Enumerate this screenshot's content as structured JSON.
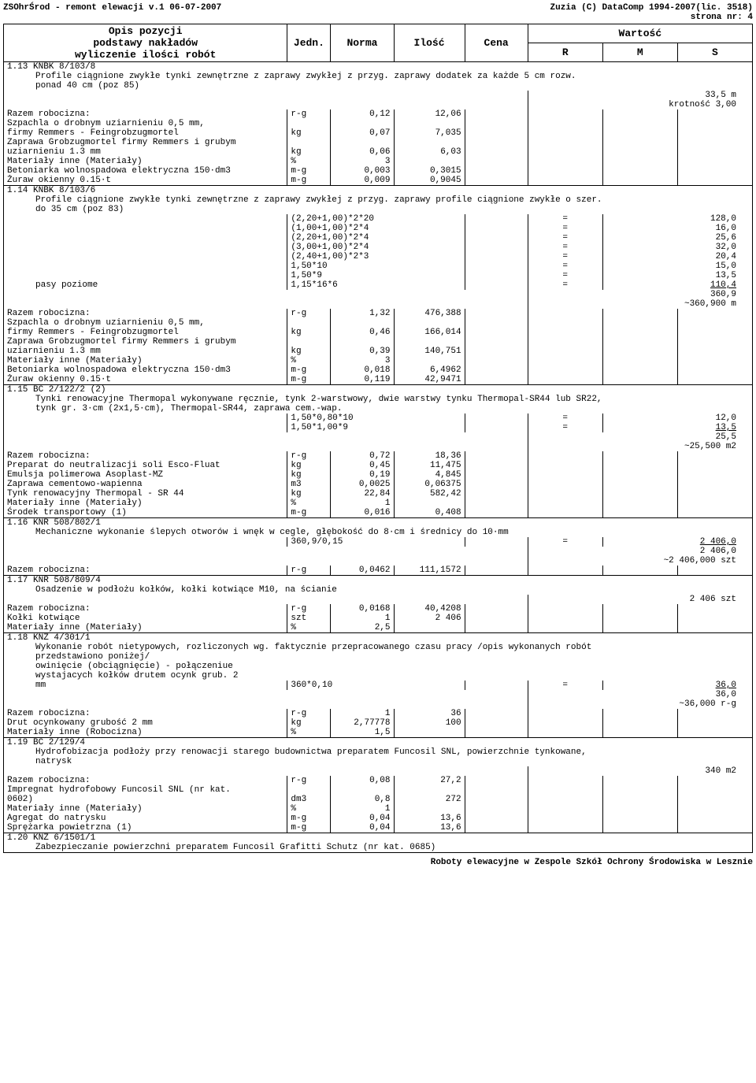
{
  "header_left": "ZSOhrŚrod - remont elewacji v.1 06-07-2007",
  "header_right1": "Zuzia (C) DataComp 1994-2007(lic. 3518)",
  "header_right2": "strona nr:   4",
  "col_headers": {
    "opis1": "Opis pozycji",
    "opis2": "podstawy nakładów",
    "opis3": "wyliczenie ilości robót",
    "jedn": "Jedn.",
    "norma": "Norma",
    "ilosc": "Ilość",
    "cena": "Cena",
    "wartosc": "Wartość",
    "r": "R",
    "m": "M",
    "s": "S"
  },
  "s113": {
    "code": "1.13 KNBK 8/103/8",
    "desc1": "Profile ciągnione zwykłe tynki zewnętrzne z zaprawy zwykłej z przyg. zaprawy dodatek za każde 5 cm rozw.",
    "desc2": "ponad 40 cm (poz 85)",
    "val": "33,5 m",
    "krot": "krotność 3,00",
    "rows": [
      {
        "label": "Razem robocizna:",
        "u": "r-g",
        "n": "0,12",
        "q": "12,06"
      },
      {
        "label": "Szpachla o drobnym uziarnieniu 0,5 mm,",
        "u": "",
        "n": "",
        "q": ""
      },
      {
        "label": "firmy Remmers - Feingrobzugmortel",
        "u": "kg",
        "n": "0,07",
        "q": "7,035"
      },
      {
        "label": "Zaprawa Grobzugmortel firmy Remmers i grubym",
        "u": "",
        "n": "",
        "q": ""
      },
      {
        "label": "uziarnieniu  1.3 mm",
        "u": "kg",
        "n": "0,06",
        "q": "6,03"
      },
      {
        "label": "Materiały inne (Materiały)",
        "u": "%",
        "n": "3",
        "q": ""
      },
      {
        "label": "Betoniarka wolnospadowa elektryczna 150·dm3",
        "u": "m-g",
        "n": "0,003",
        "q": "0,3015"
      },
      {
        "label": "Żuraw okienny 0.15·t",
        "u": "m-g",
        "n": "0,009",
        "q": "0,9045"
      }
    ]
  },
  "s114": {
    "code": "1.14 KNBK 8/103/6",
    "desc1": "Profile ciągnione zwykłe tynki zewnętrzne z zaprawy zwykłej z przyg. zaprawy profile ciągnione zwykłe o szer.",
    "desc2": "do 35 cm (poz 83)",
    "calcs": [
      {
        "label": "",
        "f": "(2,20+1,00)*2*20",
        "r": "128,0"
      },
      {
        "label": "",
        "f": "(1,00+1,00)*2*4",
        "r": "16,0"
      },
      {
        "label": "",
        "f": "(2,20+1,00)*2*4",
        "r": "25,6"
      },
      {
        "label": "",
        "f": "(3,00+1,00)*2*4",
        "r": "32,0"
      },
      {
        "label": "",
        "f": "(2,40+1,00)*2*3",
        "r": "20,4"
      },
      {
        "label": "",
        "f": "1,50*10",
        "r": "15,0"
      },
      {
        "label": "",
        "f": "1,50*9",
        "r": "13,5"
      },
      {
        "label": "pasy poziome",
        "f": "1,15*16*6",
        "r": "110,4",
        "under": true
      }
    ],
    "sum1": "360,9",
    "sum2": "~360,900 m",
    "rows": [
      {
        "label": "Razem robocizna:",
        "u": "r-g",
        "n": "1,32",
        "q": "476,388"
      },
      {
        "label": "Szpachla o drobnym uziarnieniu 0,5 mm,",
        "u": "",
        "n": "",
        "q": ""
      },
      {
        "label": "firmy Remmers - Feingrobzugmortel",
        "u": "kg",
        "n": "0,46",
        "q": "166,014"
      },
      {
        "label": "Zaprawa Grobzugmortel firmy Remmers i grubym",
        "u": "",
        "n": "",
        "q": ""
      },
      {
        "label": "uziarnieniu  1.3 mm",
        "u": "kg",
        "n": "0,39",
        "q": "140,751"
      },
      {
        "label": "Materiały inne (Materiały)",
        "u": "%",
        "n": "3",
        "q": ""
      },
      {
        "label": "Betoniarka wolnospadowa elektryczna 150·dm3",
        "u": "m-g",
        "n": "0,018",
        "q": "6,4962"
      },
      {
        "label": "Żuraw okienny 0.15·t",
        "u": "m-g",
        "n": "0,119",
        "q": "42,9471"
      }
    ]
  },
  "s115": {
    "code": "1.15 BC 2/122/2 (2)",
    "desc1": "Tynki renowacyjne Thermopal wykonywane ręcznie, tynk 2-warstwowy, dwie warstwy tynku Thermopal-SR44 lub SR22,",
    "desc2": "tynk gr. 3·cm (2x1,5·cm), Thermopal-SR44, zaprawa cem.-wap.",
    "calcs": [
      {
        "f": "1,50*0,80*10",
        "r": "12,0"
      },
      {
        "f": "1,50*1,00*9",
        "r": "13,5",
        "under": true
      }
    ],
    "sum1": "25,5",
    "sum2": "~25,500 m2",
    "rows": [
      {
        "label": "Razem robocizna:",
        "u": "r-g",
        "n": "0,72",
        "q": "18,36"
      },
      {
        "label": "Preparat do neutralizacji soli Esco-Fluat",
        "u": "kg",
        "n": "0,45",
        "q": "11,475"
      },
      {
        "label": "Emulsja polimerowa Asoplast-MZ",
        "u": "kg",
        "n": "0,19",
        "q": "4,845"
      },
      {
        "label": "Zaprawa cementowo-wapienna",
        "u": "m3",
        "n": "0,0025",
        "q": "0,06375"
      },
      {
        "label": "Tynk renowacyjny Thermopal - SR 44",
        "u": "kg",
        "n": "22,84",
        "q": "582,42"
      },
      {
        "label": "Materiały inne (Materiały)",
        "u": "%",
        "n": "1",
        "q": ""
      },
      {
        "label": "Środek transportowy (1)",
        "u": "m-g",
        "n": "0,016",
        "q": "0,408"
      }
    ]
  },
  "s116": {
    "code": "1.16 KNR 508/802/1",
    "desc": "Mechaniczne wykonanie ślepych otworów i wnęk w cegle, głębokość do 8·cm i średnicy do 10·mm",
    "calc_f": "360,9/0,15",
    "calc_r": "2 406,0",
    "sum1": "2 406,0",
    "sum2": "~2 406,000 szt",
    "rows": [
      {
        "label": "Razem robocizna:",
        "u": "r-g",
        "n": "0,0462",
        "q": "111,1572"
      }
    ]
  },
  "s117": {
    "code": "1.17 KNR 508/809/4",
    "desc": "Osadzenie w podłożu kołków, kołki kotwiące M10, na ścianie",
    "val": "2 406 szt",
    "rows": [
      {
        "label": "Razem robocizna:",
        "u": "r-g",
        "n": "0,0168",
        "q": "40,4208"
      },
      {
        "label": "Kołki kotwiące",
        "u": "szt",
        "n": "1",
        "q": "2 406"
      },
      {
        "label": "Materiały inne (Materiały)",
        "u": "%",
        "n": "2,5",
        "q": ""
      }
    ]
  },
  "s118": {
    "code": "1.18 KNZ 4/301/1",
    "desc1": "Wykonanie robót nietypowych, rozliczonych wg. faktycznie przepracowanego czasu pracy /opis wykonanych robót",
    "desc2": "przedstawiono poniżej/",
    "desc3": "owinięcie (obciągnięcie) - połączeniue",
    "desc4": "wystajacych kołków  drutem ocynk grub. 2",
    "calc_label": "mm",
    "calc_f": "360*0,10",
    "calc_r": "36,0",
    "sum1": "36,0",
    "sum2": "~36,000 r-g",
    "rows": [
      {
        "label": "Razem robocizna:",
        "u": "r-g",
        "n": "1",
        "q": "36"
      },
      {
        "label": "Drut ocynkowany grubość 2 mm",
        "u": "kg",
        "n": "2,77778",
        "q": "100"
      },
      {
        "label": "Materiały inne (Robocizna)",
        "u": "%",
        "n": "1,5",
        "q": ""
      }
    ]
  },
  "s119": {
    "code": "1.19 BC 2/129/4",
    "desc1": "Hydrofobizacja podłoży przy renowacji starego budownictwa preparatem Funcosil SNL, powierzchnie tynkowane,",
    "desc2": "natrysk",
    "val": "340 m2",
    "rows": [
      {
        "label": "Razem robocizna:",
        "u": "r-g",
        "n": "0,08",
        "q": "27,2"
      },
      {
        "label": "Impregnat hydrofobowy Funcosil SNL (nr kat.",
        "u": "",
        "n": "",
        "q": ""
      },
      {
        "label": "0602)",
        "u": "dm3",
        "n": "0,8",
        "q": "272"
      },
      {
        "label": "Materiały inne (Materiały)",
        "u": "%",
        "n": "1",
        "q": ""
      },
      {
        "label": "Agregat do natrysku",
        "u": "m-g",
        "n": "0,04",
        "q": "13,6"
      },
      {
        "label": "Sprężarka powietrzna (1)",
        "u": "m-g",
        "n": "0,04",
        "q": "13,6"
      }
    ]
  },
  "s120": {
    "code": "1.20 KNZ 6/1501/1",
    "desc": "Zabezpieczanie powierzchni preparatem Funcosil Grafitti Schutz  (nr kat. 0685)"
  },
  "footer": "Roboty elewacyjne w Zespole Szkół Ochrony Środowiska w Lesznie"
}
